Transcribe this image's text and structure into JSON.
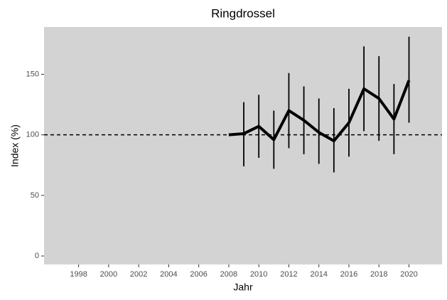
{
  "chart_data": {
    "type": "line",
    "title": "Ringdrossel",
    "x_label": "Jahr",
    "y_label": "Index (%)",
    "x": [
      2008,
      2009,
      2010,
      2011,
      2012,
      2013,
      2014,
      2015,
      2016,
      2017,
      2018,
      2019,
      2020
    ],
    "series": [
      {
        "color": "#000000",
        "values": [
          100,
          101,
          107,
          96,
          120,
          112,
          102,
          95,
          110,
          138,
          130,
          113,
          145
        ],
        "lower": [
          null,
          74,
          81,
          72,
          89,
          84,
          76,
          69,
          82,
          103,
          95,
          84,
          110
        ],
        "upper": [
          null,
          127,
          133,
          120,
          151,
          140,
          130,
          122,
          138,
          173,
          165,
          142,
          181
        ]
      }
    ],
    "reference_line": 100,
    "xlim": [
      1995.7,
      2022.2
    ],
    "xticks": [
      1998,
      2000,
      2002,
      2004,
      2006,
      2008,
      2010,
      2012,
      2014,
      2016,
      2018,
      2020
    ],
    "ylim": [
      -7,
      189
    ],
    "yticks": [
      0,
      50,
      100,
      150
    ],
    "grid": false
  }
}
